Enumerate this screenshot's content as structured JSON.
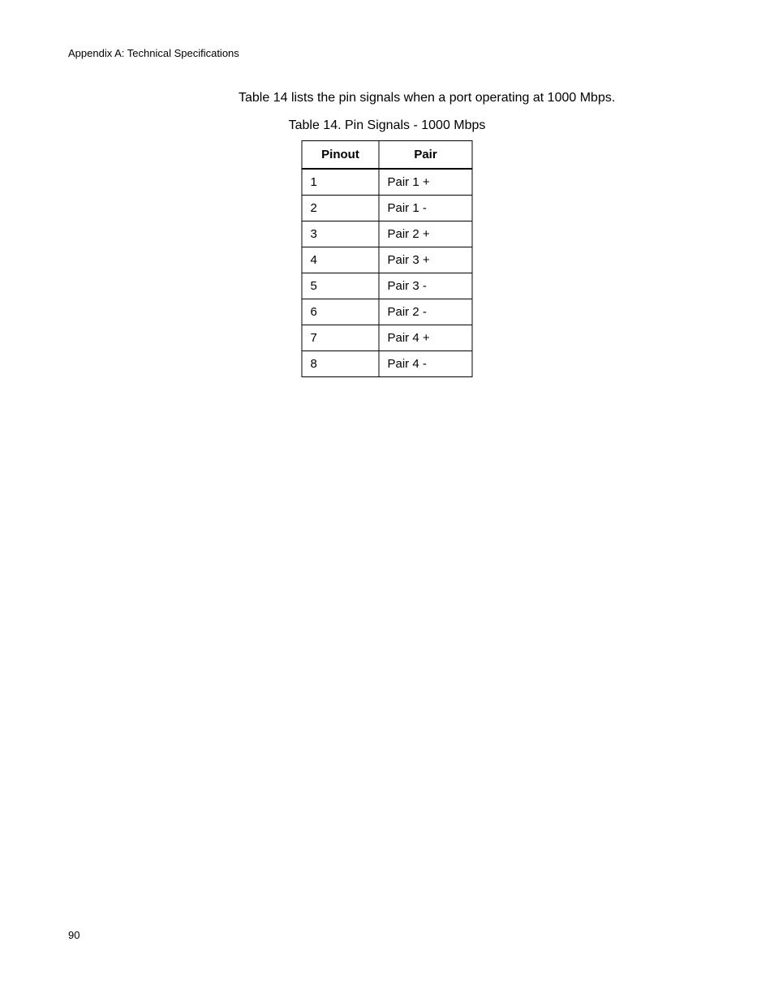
{
  "header": {
    "text": "Appendix A: Technical Specifications"
  },
  "intro": {
    "text": "Table 14 lists the pin signals when a port operating at 1000 Mbps."
  },
  "table": {
    "caption": "Table 14. Pin Signals - 1000 Mbps",
    "columns": [
      "Pinout",
      "Pair"
    ],
    "rows": [
      [
        "1",
        "Pair 1 +"
      ],
      [
        "2",
        "Pair 1 -"
      ],
      [
        "3",
        "Pair 2 +"
      ],
      [
        "4",
        "Pair 3 +"
      ],
      [
        "5",
        "Pair 3 -"
      ],
      [
        "6",
        "Pair 2 -"
      ],
      [
        "7",
        "Pair 4 +"
      ],
      [
        "8",
        "Pair 4 -"
      ]
    ]
  },
  "page_number": "90",
  "styling": {
    "background_color": "#ffffff",
    "text_color": "#000000",
    "border_color": "#000000",
    "header_fontsize": 13,
    "body_fontsize": 16,
    "table_fontsize": 15,
    "page_number_fontsize": 13
  }
}
